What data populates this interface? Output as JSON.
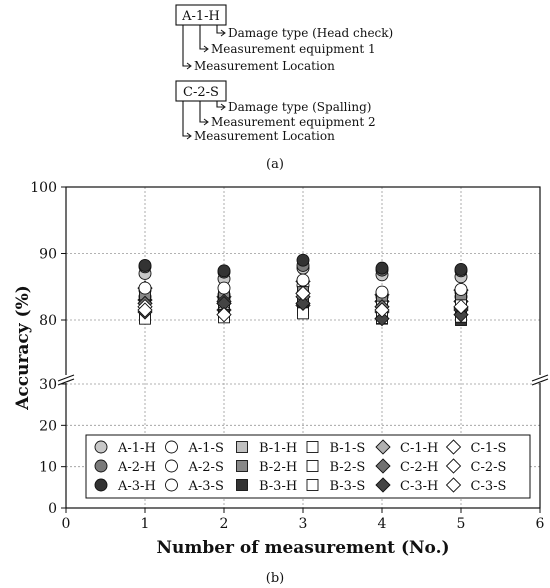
{
  "legend_diagram": {
    "box1": {
      "code": "A-1-H",
      "lines": [
        "Damage type (Head check)",
        "Measurement equipment 1",
        "Measurement Location"
      ]
    },
    "box2": {
      "code": "C-2-S",
      "lines": [
        "Damage type (Spalling)",
        "Measurement equipment 2",
        "Measurement Location"
      ]
    },
    "caption": "(a)"
  },
  "chart_data": {
    "type": "scatter",
    "caption": "(b)",
    "xlabel": "Number of measurement (No.)",
    "ylabel": "Accuracy (%)",
    "xlim": [
      0,
      6
    ],
    "x_ticks": [
      0,
      1,
      2,
      3,
      4,
      5,
      6
    ],
    "y_ticks_upper": [
      80,
      90,
      100
    ],
    "y_ticks_lower": [
      0,
      10,
      20,
      30
    ],
    "y_axis_break": [
      30,
      80
    ],
    "grid": true,
    "legend_position": "bottom-inside",
    "x": [
      1,
      2,
      3,
      4,
      5
    ],
    "series": [
      {
        "name": "A-1-H",
        "marker": "circle",
        "fill": "#c8c8c8",
        "values": [
          87.0,
          86.2,
          87.8,
          86.8,
          86.5
        ]
      },
      {
        "name": "A-1-S",
        "marker": "circle",
        "fill": "#ffffff",
        "values": [
          84.5,
          83.8,
          85.2,
          84.0,
          84.2
        ]
      },
      {
        "name": "B-1-H",
        "marker": "square",
        "fill": "#c0c0c0",
        "values": [
          82.5,
          82.0,
          83.0,
          82.5,
          82.5
        ]
      },
      {
        "name": "B-1-S",
        "marker": "square",
        "fill": "#ffffff",
        "values": [
          81.5,
          81.2,
          82.0,
          81.8,
          81.5
        ]
      },
      {
        "name": "C-1-H",
        "marker": "diamond",
        "fill": "#b0b0b0",
        "values": [
          83.0,
          82.5,
          84.0,
          82.8,
          82.8
        ]
      },
      {
        "name": "C-1-S",
        "marker": "diamond",
        "fill": "#ffffff",
        "values": [
          84.8,
          83.5,
          85.8,
          83.8,
          84.5
        ]
      },
      {
        "name": "A-2-H",
        "marker": "circle",
        "fill": "#7a7a7a",
        "values": [
          88.0,
          87.2,
          88.2,
          87.5,
          87.4
        ]
      },
      {
        "name": "A-2-S",
        "marker": "circle",
        "fill": "#ffffff",
        "values": [
          83.5,
          83.2,
          84.0,
          83.5,
          83.5
        ]
      },
      {
        "name": "B-2-H",
        "marker": "square",
        "fill": "#888888",
        "values": [
          83.5,
          83.5,
          84.2,
          83.2,
          83.2
        ]
      },
      {
        "name": "B-2-S",
        "marker": "square",
        "fill": "#ffffff",
        "values": [
          82.2,
          82.5,
          82.5,
          82.0,
          82.2
        ]
      },
      {
        "name": "C-2-H",
        "marker": "diamond",
        "fill": "#707070",
        "values": [
          82.5,
          82.8,
          83.5,
          82.0,
          81.5
        ]
      },
      {
        "name": "C-2-S",
        "marker": "diamond",
        "fill": "#ffffff",
        "values": [
          82.0,
          81.5,
          82.2,
          81.2,
          81.8
        ]
      },
      {
        "name": "A-3-H",
        "marker": "circle",
        "fill": "#333333",
        "values": [
          88.2,
          87.4,
          89.0,
          87.8,
          87.6
        ]
      },
      {
        "name": "A-3-S",
        "marker": "circle",
        "fill": "#ffffff",
        "values": [
          84.8,
          84.8,
          86.0,
          84.2,
          84.6
        ]
      },
      {
        "name": "B-3-H",
        "marker": "square",
        "fill": "#333333",
        "values": [
          80.5,
          80.8,
          81.5,
          80.2,
          80.0
        ]
      },
      {
        "name": "B-3-S",
        "marker": "square",
        "fill": "#ffffff",
        "values": [
          80.2,
          80.4,
          81.0,
          80.3,
          80.5
        ]
      },
      {
        "name": "C-3-H",
        "marker": "diamond",
        "fill": "#444444",
        "values": [
          81.2,
          82.5,
          82.5,
          80.2,
          80.8
        ]
      },
      {
        "name": "C-3-S",
        "marker": "diamond",
        "fill": "#ffffff",
        "values": [
          81.5,
          80.8,
          84.0,
          81.5,
          82.0
        ]
      }
    ],
    "legend_order": [
      "A-1-H",
      "A-1-S",
      "B-1-H",
      "B-1-S",
      "C-1-H",
      "C-1-S",
      "A-2-H",
      "A-2-S",
      "B-2-H",
      "B-2-S",
      "C-2-H",
      "C-2-S",
      "A-3-H",
      "A-3-S",
      "B-3-H",
      "B-3-S",
      "C-3-H",
      "C-3-S"
    ]
  }
}
